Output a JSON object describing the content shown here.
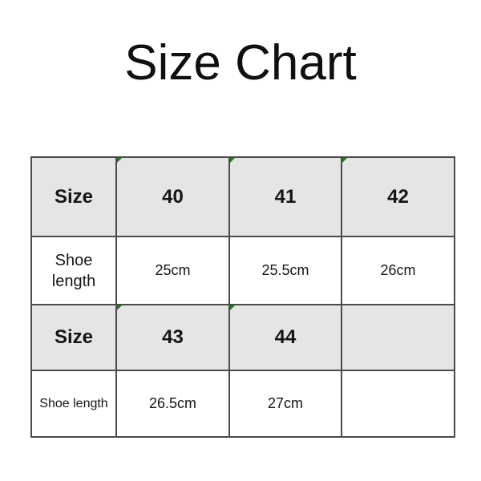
{
  "title": "Size Chart",
  "chart_data": {
    "type": "table",
    "title": "Size Chart",
    "rows": [
      {
        "style": "header",
        "cells": [
          "Size",
          "40",
          "41",
          "42"
        ]
      },
      {
        "style": "value",
        "cells": [
          "Shoe length",
          "25cm",
          "25.5cm",
          "26cm"
        ]
      },
      {
        "style": "header",
        "cells": [
          "Size",
          "43",
          "44",
          ""
        ]
      },
      {
        "style": "value",
        "cells": [
          "Shoe length",
          "26.5cm",
          "27cm",
          ""
        ]
      }
    ]
  },
  "colors": {
    "background": "#ffffff",
    "header_row_bg": "#e5e5e5",
    "value_row_bg": "#ffffff",
    "table_border": "#4a4a4a",
    "text": "#151515",
    "corner_marker_green": "#1f7a1f"
  }
}
